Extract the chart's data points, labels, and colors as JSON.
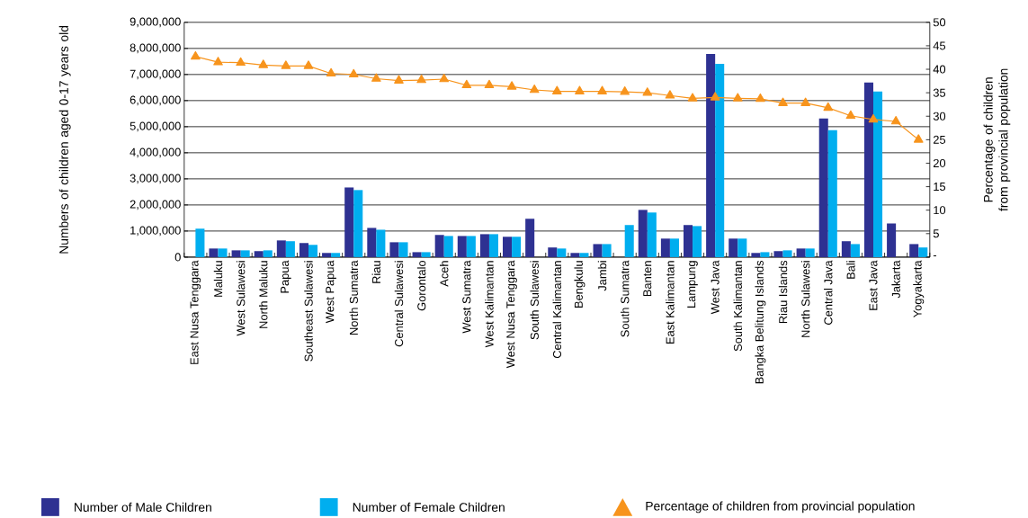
{
  "chart_data": {
    "type": "bar",
    "ylabel": "Numbers of children aged 0-17 years old",
    "y2label": "Percentage of children from provincial population",
    "categories": [
      "East Nusa Tenggara",
      "Maluku",
      "West Sulawesi",
      "North Maluku",
      "Papua",
      "Southeast Sulawesi",
      "West Papua",
      "North Sumatra",
      "Riau",
      "Central Sulawesi",
      "Gorontalo",
      "Aceh",
      "West Sumatra",
      "West Kalimantan",
      "West Nusa Tenggara",
      "South Sulawesi",
      "Central Kalimantan",
      "Bengkulu",
      "Jambi",
      "South Sumatra",
      "Banten",
      "East Kalimantan",
      "Lampung",
      "West Java",
      "South Kalimantan",
      "Bangka Belitung Islands",
      "Riau Islands",
      "North Sulawesi",
      "Central Java",
      "Bali",
      "East Java",
      "Jakarta",
      "Yogyakarta"
    ],
    "series": [
      {
        "name": "Number of Male Children",
        "color": "#2e3192",
        "values": [
          null,
          330000,
          260000,
          230000,
          640000,
          540000,
          160000,
          2670000,
          1120000,
          570000,
          190000,
          850000,
          810000,
          880000,
          780000,
          1470000,
          370000,
          160000,
          500000,
          null,
          1810000,
          710000,
          1230000,
          7790000,
          710000,
          160000,
          230000,
          330000,
          5310000,
          610000,
          6690000,
          1290000,
          500000
        ]
      },
      {
        "name": "Number of  Female Children",
        "color": "#00aeef",
        "values": [
          1090000,
          330000,
          260000,
          260000,
          610000,
          470000,
          160000,
          2570000,
          1050000,
          570000,
          190000,
          810000,
          810000,
          880000,
          780000,
          null,
          330000,
          160000,
          500000,
          1230000,
          1710000,
          710000,
          1190000,
          7410000,
          710000,
          190000,
          260000,
          330000,
          4870000,
          500000,
          6350000,
          null,
          370000
        ]
      },
      {
        "name": "Percentage of children from provincial population",
        "type": "line",
        "axis": "y2",
        "marker": "triangle",
        "color": "#f7941d",
        "values": [
          42.7,
          41.5,
          41.4,
          40.9,
          40.7,
          40.7,
          39.1,
          38.9,
          38.0,
          37.6,
          37.7,
          37.9,
          36.6,
          36.6,
          36.3,
          35.6,
          35.3,
          35.3,
          35.3,
          35.2,
          35.0,
          34.4,
          33.8,
          34.0,
          33.8,
          33.7,
          32.8,
          32.8,
          31.8,
          30.1,
          29.3,
          28.9,
          25.0
        ]
      }
    ],
    "ylim": [
      0,
      9000000
    ],
    "yticks": [
      0,
      {
        "value": 1000000,
        "label": "1,000,000"
      },
      {
        "value": 2000000,
        "label": "2,000,000"
      },
      {
        "value": 3000000,
        "label": "3,000,000"
      },
      {
        "value": 4000000,
        "label": "4,000,000"
      },
      {
        "value": 5000000,
        "label": "5,000,000"
      },
      {
        "value": 6000000,
        "label": "6,000,000"
      },
      {
        "value": 7000000,
        "label": "7,000,000"
      },
      {
        "value": 8000000,
        "label": "8,000,000"
      },
      {
        "value": 9000000,
        "label": "9,000,000"
      }
    ],
    "y2lim": [
      0,
      50
    ],
    "y2ticks": [
      {
        "value": 0,
        "label": "-"
      },
      5,
      10,
      15,
      20,
      25,
      30,
      35,
      40,
      45,
      50
    ],
    "grid": "y",
    "legend": "bottom"
  }
}
